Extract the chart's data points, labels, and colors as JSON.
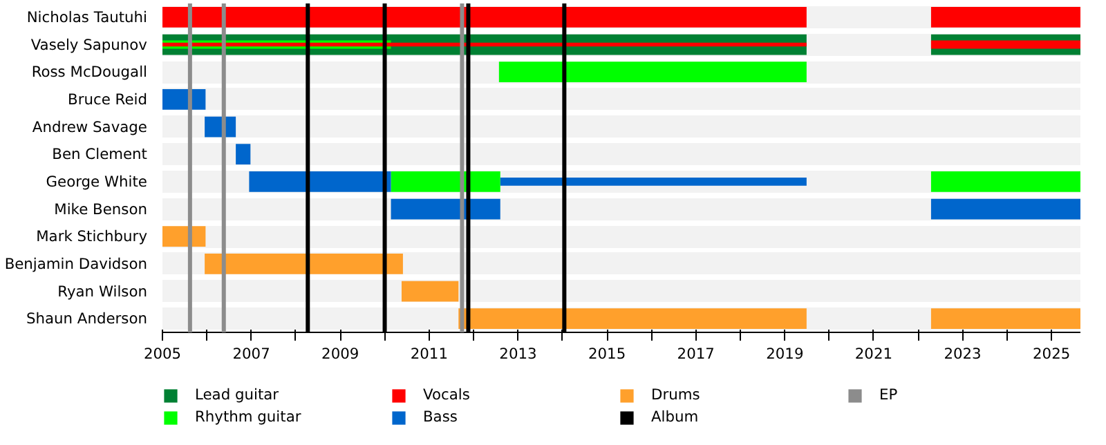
{
  "chart_data": {
    "type": "bar",
    "orientation": "horizontal",
    "categories": [
      "Nicholas Tautuhi",
      "Vasely Sapunov",
      "Ross McDougall",
      "Bruce Reid",
      "Andrew Savage",
      "Ben Clement",
      "George White",
      "Mike Benson",
      "Mark Stichbury",
      "Benjamin Davidson",
      "Ryan Wilson",
      "Shaun Anderson"
    ],
    "series": [
      {
        "name": "Lead guitar",
        "color": "#008033",
        "base": [
          null,
          2005,
          null,
          null,
          null,
          null,
          null,
          null,
          null,
          null,
          null,
          null
        ],
        "values": [
          null,
          14.49,
          null,
          null,
          null,
          null,
          null,
          null,
          null,
          null,
          null,
          null
        ]
      },
      {
        "color": "#008033",
        "base": [
          null,
          2022.29,
          null,
          null,
          null,
          null,
          null,
          null,
          null,
          null,
          null,
          null
        ],
        "values": [
          null,
          3.36,
          null,
          null,
          null,
          null,
          null,
          null,
          null,
          null,
          null,
          null
        ]
      },
      {
        "name": "Rhythm guitar",
        "color": "#00ff00",
        "base": [
          null,
          2005,
          2012.57,
          null,
          null,
          null,
          2010.14,
          null,
          null,
          null,
          null,
          null
        ],
        "values": [
          null,
          5.14,
          6.92,
          null,
          null,
          null,
          2.46,
          null,
          null,
          null,
          null,
          null
        ]
      },
      {
        "color": "#00ff00",
        "base": [
          null,
          null,
          null,
          null,
          null,
          null,
          2022.29,
          null,
          null,
          null,
          null,
          null
        ],
        "values": [
          null,
          null,
          null,
          null,
          null,
          null,
          3.36,
          null,
          null,
          null,
          null,
          null
        ]
      },
      {
        "name": "Vocals",
        "color": "#ff0000",
        "base": [
          2005,
          2005,
          null,
          null,
          null,
          null,
          null,
          null,
          null,
          null,
          null,
          null
        ],
        "values": [
          14.49,
          14.49,
          null,
          null,
          null,
          null,
          null,
          null,
          null,
          null,
          null,
          null
        ]
      },
      {
        "color": "#ff0000",
        "base": [
          2022.29,
          2022.29,
          null,
          null,
          null,
          null,
          null,
          null,
          null,
          null,
          null,
          null
        ],
        "values": [
          3.36,
          3.36,
          null,
          null,
          null,
          null,
          null,
          null,
          null,
          null,
          null,
          null
        ]
      },
      {
        "name": "Bass",
        "color": "#0066cc",
        "base": [
          null,
          null,
          null,
          2005,
          2005.95,
          2006.65,
          2006.95,
          2010.14,
          null,
          null,
          null,
          null
        ],
        "values": [
          null,
          null,
          null,
          0.97,
          0.7,
          0.33,
          3.19,
          2.46,
          null,
          null,
          null,
          null
        ]
      },
      {
        "color": "#0066cc",
        "base": [
          null,
          null,
          null,
          null,
          null,
          null,
          2012.6,
          2022.29,
          null,
          null,
          null,
          null
        ],
        "values": [
          null,
          null,
          null,
          null,
          null,
          null,
          6.89,
          3.36,
          null,
          null,
          null,
          null
        ]
      },
      {
        "name": "Drums",
        "color": "#ffa02c",
        "base": [
          null,
          null,
          null,
          null,
          null,
          null,
          null,
          null,
          2005,
          2005.95,
          2010.38,
          2011.66
        ],
        "values": [
          null,
          null,
          null,
          null,
          null,
          null,
          null,
          null,
          0.97,
          4.46,
          1.28,
          7.83
        ]
      },
      {
        "color": "#ffa02c",
        "base": [
          null,
          null,
          null,
          null,
          null,
          null,
          null,
          null,
          null,
          null,
          null,
          2022.29
        ],
        "values": [
          null,
          null,
          null,
          null,
          null,
          null,
          null,
          null,
          null,
          null,
          null,
          3.36
        ]
      }
    ],
    "ref_lines": [
      {
        "axis": "x",
        "value": 2008.27,
        "label": "Album",
        "color": "#000000"
      },
      {
        "axis": "x",
        "value": 2010.0,
        "color": "#000000"
      },
      {
        "axis": "x",
        "value": 2011.88,
        "color": "#000000"
      },
      {
        "axis": "x",
        "value": 2014.04,
        "color": "#000000"
      },
      {
        "axis": "x",
        "value": 2005.62,
        "label": "EP",
        "color": "#8c8c8c"
      },
      {
        "axis": "x",
        "value": 2006.38,
        "color": "#8c8c8c"
      },
      {
        "axis": "x",
        "value": 2011.74,
        "color": "#8c8c8c"
      }
    ],
    "xlim": [
      2005,
      2025.65
    ],
    "xticks": [
      2005,
      {
        "value": 2006,
        "label": null
      },
      2007,
      {
        "value": 2008,
        "label": null
      },
      2009,
      {
        "value": 2010,
        "label": null
      },
      2011,
      {
        "value": 2012,
        "label": null
      },
      2013,
      {
        "value": 2014,
        "label": null
      },
      2015,
      {
        "value": 2016,
        "label": null
      },
      2017,
      {
        "value": 2018,
        "label": null
      },
      2019,
      {
        "value": 2020,
        "label": null
      },
      2021,
      {
        "value": 2022,
        "label": null
      },
      2023,
      {
        "value": 2024,
        "label": null
      },
      2025
    ],
    "grid": "y",
    "legend": "bottom"
  }
}
